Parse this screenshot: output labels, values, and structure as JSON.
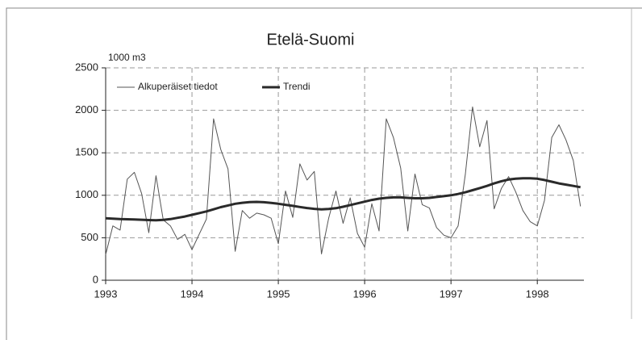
{
  "chart_data": {
    "type": "line",
    "title": "Etelä-Suomi",
    "y_label": "1000 m3",
    "x": [
      1993,
      1993.083,
      1993.167,
      1993.25,
      1993.333,
      1993.417,
      1993.5,
      1993.583,
      1993.667,
      1993.75,
      1993.833,
      1993.917,
      1994,
      1994.083,
      1994.167,
      1994.25,
      1994.333,
      1994.417,
      1994.5,
      1994.583,
      1994.667,
      1994.75,
      1994.833,
      1994.917,
      1995,
      1995.083,
      1995.167,
      1995.25,
      1995.333,
      1995.417,
      1995.5,
      1995.583,
      1995.667,
      1995.75,
      1995.833,
      1995.917,
      1996,
      1996.083,
      1996.167,
      1996.25,
      1996.333,
      1996.417,
      1996.5,
      1996.583,
      1996.667,
      1996.75,
      1996.833,
      1996.917,
      1997,
      1997.083,
      1997.167,
      1997.25,
      1997.333,
      1997.417,
      1997.5,
      1997.583,
      1997.667,
      1997.75,
      1997.833,
      1997.917,
      1998,
      1998.083,
      1998.167,
      1998.25,
      1998.333,
      1998.417,
      1998.5
    ],
    "series": [
      {
        "name": "Alkuperäiset tiedot",
        "color": "#555555",
        "values": [
          300,
          640,
          590,
          1190,
          1270,
          1020,
          560,
          1230,
          710,
          640,
          480,
          540,
          360,
          540,
          720,
          1900,
          1540,
          1310,
          340,
          820,
          730,
          790,
          770,
          730,
          430,
          1050,
          740,
          1370,
          1180,
          1280,
          310,
          730,
          1050,
          670,
          970,
          550,
          390,
          900,
          580,
          1900,
          1680,
          1320,
          580,
          1250,
          890,
          850,
          620,
          530,
          500,
          640,
          1250,
          2040,
          1570,
          1880,
          840,
          1080,
          1220,
          1040,
          820,
          690,
          640,
          940,
          1680,
          1830,
          1650,
          1410,
          870
        ]
      },
      {
        "name": "Trendi",
        "color": "#2a2a2a",
        "values": [
          730,
          725,
          720,
          718,
          715,
          712,
          708,
          705,
          710,
          720,
          735,
          750,
          770,
          790,
          810,
          835,
          860,
          880,
          900,
          912,
          920,
          922,
          918,
          910,
          900,
          888,
          875,
          862,
          850,
          840,
          835,
          838,
          848,
          865,
          885,
          905,
          925,
          945,
          960,
          970,
          975,
          975,
          970,
          965,
          965,
          970,
          980,
          990,
          1000,
          1015,
          1035,
          1060,
          1085,
          1110,
          1140,
          1165,
          1185,
          1195,
          1200,
          1200,
          1195,
          1180,
          1160,
          1140,
          1125,
          1110,
          1095
        ]
      }
    ],
    "xlim": [
      1993,
      1998.54
    ],
    "xticks": [
      1993,
      1994,
      1995,
      1996,
      1997,
      1998
    ],
    "ylim": [
      0,
      2500
    ],
    "yticks": [
      0,
      500,
      1000,
      1500,
      2000,
      2500
    ],
    "grid": true
  }
}
